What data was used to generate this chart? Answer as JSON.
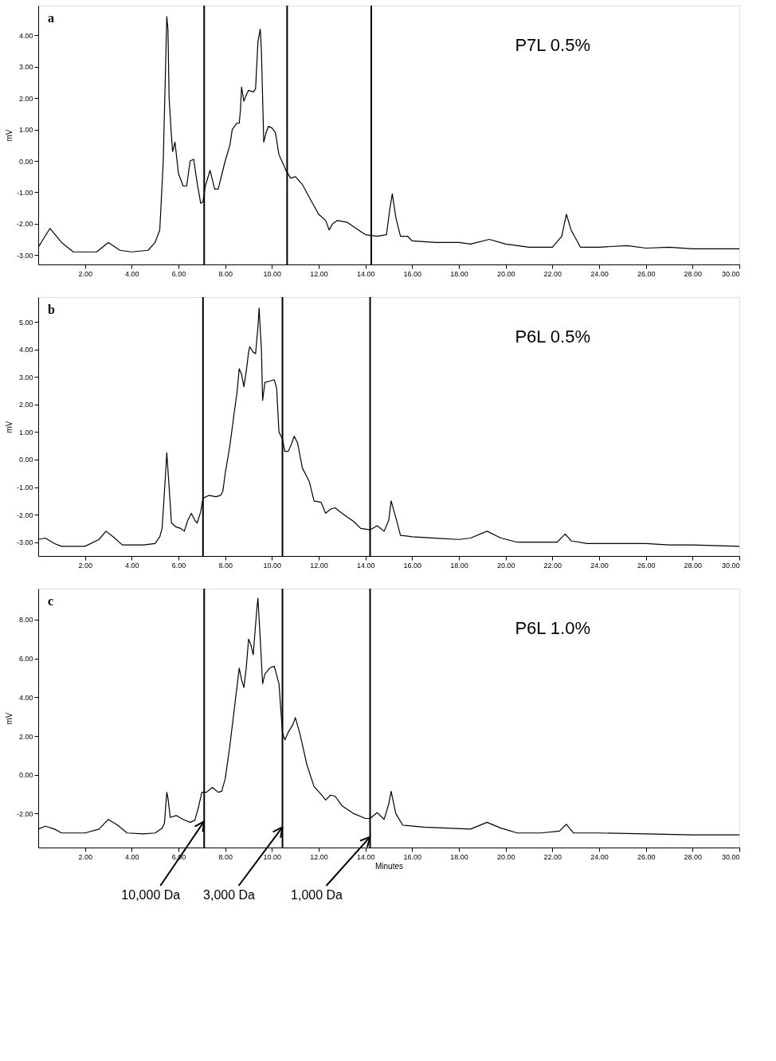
{
  "chart_data": [
    {
      "type": "line",
      "title": "a",
      "ylabel": "mV",
      "annotations": [
        "P7L 0.5%"
      ],
      "grid": false,
      "marker": "none",
      "line_style": "solid",
      "xlim": [
        0,
        30
      ],
      "ylim": [
        -3.3,
        4.95
      ],
      "xticks": [
        {
          "value": 2,
          "label": "2.00"
        },
        {
          "value": 4,
          "label": "4.00"
        },
        {
          "value": 6,
          "label": "6.00"
        },
        {
          "value": 8,
          "label": "8.00"
        },
        {
          "value": 10,
          "label": "10.00"
        },
        {
          "value": 12,
          "label": "12.00"
        },
        {
          "value": 14,
          "label": "14.00"
        },
        {
          "value": 16,
          "label": "16.00"
        },
        {
          "value": 18,
          "label": "18.00"
        },
        {
          "value": 20,
          "label": "20.00"
        },
        {
          "value": 22,
          "label": "22.00"
        },
        {
          "value": 24,
          "label": "24.00"
        },
        {
          "value": 26,
          "label": "26.00"
        },
        {
          "value": 28,
          "label": "28.00"
        },
        {
          "value": 30,
          "label": "30.00"
        }
      ],
      "yticks": [
        {
          "value": -3,
          "label": "-3.00"
        },
        {
          "value": -2,
          "label": "-2.00"
        },
        {
          "value": -1,
          "label": "-1.00"
        },
        {
          "value": 0,
          "label": "0.00"
        },
        {
          "value": 1,
          "label": "1.00"
        },
        {
          "value": 2,
          "label": "2.00"
        },
        {
          "value": 3,
          "label": "3.00"
        },
        {
          "value": 4,
          "label": "4.00"
        }
      ],
      "ref_lines": [
        {
          "axis": "x",
          "value": 7.1,
          "color": "#000000"
        },
        {
          "axis": "x",
          "value": 10.65,
          "color": "#000000"
        },
        {
          "axis": "x",
          "value": 14.25,
          "color": "#000000"
        }
      ],
      "series": [
        {
          "color": "#000000",
          "x": [
            0,
            0.5,
            1.0,
            1.5,
            2.5,
            3.0,
            3.5,
            4.0,
            4.7,
            5.0,
            5.2,
            5.35,
            5.5,
            5.55,
            5.6,
            5.7,
            5.75,
            5.85,
            6.0,
            6.2,
            6.35,
            6.5,
            6.65,
            6.8,
            6.95,
            7.05,
            7.15,
            7.35,
            7.55,
            7.7,
            8.0,
            8.2,
            8.3,
            8.5,
            8.6,
            8.65,
            8.7,
            8.8,
            8.9,
            9.0,
            9.2,
            9.3,
            9.4,
            9.5,
            9.55,
            9.65,
            9.75,
            9.85,
            10.0,
            10.15,
            10.3,
            10.6,
            10.8,
            11.0,
            11.3,
            11.7,
            12.0,
            12.3,
            12.45,
            12.6,
            12.8,
            13.2,
            13.6,
            14.0,
            14.5,
            14.9,
            15.05,
            15.15,
            15.3,
            15.5,
            15.8,
            16.0,
            17.0,
            18.0,
            18.5,
            19.3,
            20.0,
            21.0,
            22.0,
            22.4,
            22.6,
            22.8,
            23.2,
            24.0,
            25.2,
            26.0,
            27.0,
            28.0,
            30.0
          ],
          "values": [
            -2.75,
            -2.15,
            -2.6,
            -2.9,
            -2.9,
            -2.6,
            -2.85,
            -2.9,
            -2.85,
            -2.6,
            -2.2,
            0.0,
            4.6,
            4.2,
            2.0,
            0.8,
            0.3,
            0.6,
            -0.4,
            -0.8,
            -0.8,
            0.0,
            0.05,
            -0.7,
            -1.35,
            -1.3,
            -0.8,
            -0.3,
            -0.9,
            -0.9,
            0.0,
            0.5,
            1.0,
            1.2,
            1.2,
            1.6,
            2.35,
            1.9,
            2.1,
            2.25,
            2.2,
            2.3,
            3.8,
            4.2,
            3.5,
            0.6,
            0.9,
            1.1,
            1.05,
            0.9,
            0.2,
            -0.3,
            -0.55,
            -0.5,
            -0.75,
            -1.3,
            -1.7,
            -1.9,
            -2.2,
            -2.0,
            -1.9,
            -1.95,
            -2.15,
            -2.35,
            -2.4,
            -2.35,
            -1.5,
            -1.05,
            -1.8,
            -2.4,
            -2.4,
            -2.55,
            -2.6,
            -2.6,
            -2.65,
            -2.5,
            -2.65,
            -2.75,
            -2.75,
            -2.4,
            -1.7,
            -2.2,
            -2.75,
            -2.75,
            -2.7,
            -2.78,
            -2.75,
            -2.8,
            -2.8
          ]
        }
      ]
    },
    {
      "type": "line",
      "title": "b",
      "ylabel": "mV",
      "annotations": [
        "P6L 0.5%"
      ],
      "grid": false,
      "marker": "none",
      "line_style": "solid",
      "xlim": [
        0,
        30
      ],
      "ylim": [
        -3.5,
        5.9
      ],
      "xticks": [
        {
          "value": 2,
          "label": "2.00"
        },
        {
          "value": 4,
          "label": "4.00"
        },
        {
          "value": 6,
          "label": "6.00"
        },
        {
          "value": 8,
          "label": "8.00"
        },
        {
          "value": 10,
          "label": "10.00"
        },
        {
          "value": 12,
          "label": "12.00"
        },
        {
          "value": 14,
          "label": "14.00"
        },
        {
          "value": 16,
          "label": "16.00"
        },
        {
          "value": 18,
          "label": "18.00"
        },
        {
          "value": 20,
          "label": "20.00"
        },
        {
          "value": 22,
          "label": "22.00"
        },
        {
          "value": 24,
          "label": "24.00"
        },
        {
          "value": 26,
          "label": "26.00"
        },
        {
          "value": 28,
          "label": "28.00"
        },
        {
          "value": 30,
          "label": "30.00"
        }
      ],
      "yticks": [
        {
          "value": -3,
          "label": "-3.00"
        },
        {
          "value": -2,
          "label": "-2.00"
        },
        {
          "value": -1,
          "label": "-1.00"
        },
        {
          "value": 0,
          "label": "0.00"
        },
        {
          "value": 1,
          "label": "1.00"
        },
        {
          "value": 2,
          "label": "2.00"
        },
        {
          "value": 3,
          "label": "3.00"
        },
        {
          "value": 4,
          "label": "4.00"
        },
        {
          "value": 5,
          "label": "5.00"
        }
      ],
      "ref_lines": [
        {
          "axis": "x",
          "value": 7.05,
          "color": "#000000"
        },
        {
          "axis": "x",
          "value": 10.45,
          "color": "#000000"
        },
        {
          "axis": "x",
          "value": 14.2,
          "color": "#000000"
        }
      ],
      "series": [
        {
          "color": "#000000",
          "x": [
            0,
            0.3,
            0.7,
            1.0,
            2.0,
            2.6,
            2.9,
            3.2,
            3.6,
            4.5,
            5.0,
            5.2,
            5.3,
            5.45,
            5.5,
            5.6,
            5.7,
            5.9,
            6.1,
            6.25,
            6.4,
            6.55,
            6.7,
            6.8,
            6.95,
            7.05,
            7.3,
            7.6,
            7.8,
            7.9,
            8.0,
            8.2,
            8.4,
            8.5,
            8.6,
            8.7,
            8.8,
            8.9,
            9.0,
            9.05,
            9.2,
            9.3,
            9.4,
            9.45,
            9.55,
            9.6,
            9.7,
            9.9,
            10.1,
            10.2,
            10.3,
            10.45,
            10.55,
            10.7,
            10.85,
            10.95,
            11.1,
            11.3,
            11.6,
            11.8,
            12.1,
            12.3,
            12.5,
            12.7,
            13.0,
            13.5,
            13.8,
            14.2,
            14.5,
            14.8,
            15.0,
            15.1,
            15.3,
            15.5,
            16.0,
            17.0,
            18.0,
            18.5,
            19.2,
            19.8,
            20.5,
            21.5,
            22.2,
            22.55,
            22.8,
            23.5,
            25.0,
            26.0,
            27.0,
            28.0,
            30.0
          ],
          "values": [
            -2.9,
            -2.85,
            -3.05,
            -3.15,
            -3.15,
            -2.9,
            -2.6,
            -2.8,
            -3.1,
            -3.1,
            -3.05,
            -2.8,
            -2.5,
            -0.5,
            0.25,
            -1.0,
            -2.3,
            -2.45,
            -2.5,
            -2.6,
            -2.2,
            -1.95,
            -2.2,
            -2.3,
            -1.9,
            -1.4,
            -1.3,
            -1.35,
            -1.3,
            -1.15,
            -0.5,
            0.5,
            1.8,
            2.4,
            3.3,
            3.1,
            2.65,
            3.2,
            3.9,
            4.1,
            3.9,
            3.85,
            4.8,
            5.5,
            4.0,
            2.15,
            2.8,
            2.85,
            2.9,
            2.6,
            1.0,
            0.75,
            0.3,
            0.3,
            0.6,
            0.85,
            0.6,
            -0.3,
            -0.8,
            -1.5,
            -1.55,
            -1.95,
            -1.8,
            -1.75,
            -1.95,
            -2.25,
            -2.5,
            -2.55,
            -2.4,
            -2.6,
            -2.2,
            -1.5,
            -2.1,
            -2.75,
            -2.8,
            -2.85,
            -2.9,
            -2.85,
            -2.6,
            -2.85,
            -3.0,
            -3.0,
            -3.0,
            -2.7,
            -2.95,
            -3.05,
            -3.05,
            -3.05,
            -3.1,
            -3.1,
            -3.15
          ]
        }
      ]
    },
    {
      "type": "line",
      "title": "c",
      "xlabel": "Minutes",
      "ylabel": "mV",
      "grid": false,
      "marker": "none",
      "line_style": "solid",
      "annotations": [
        "P6L 1.0%",
        {
          "text": "10,000 Da",
          "x": 7.1,
          "y": -2.4
        },
        {
          "text": "3,000 Da",
          "x": 10.45,
          "y": -2.7
        },
        {
          "text": "1,000 Da",
          "x": 14.2,
          "y": -3.2
        }
      ],
      "xlim": [
        0,
        30
      ],
      "ylim": [
        -3.75,
        9.6
      ],
      "xticks": [
        {
          "value": 2,
          "label": "2.00"
        },
        {
          "value": 4,
          "label": "4.00"
        },
        {
          "value": 6,
          "label": "6.00"
        },
        {
          "value": 8,
          "label": "8.00"
        },
        {
          "value": 10,
          "label": "10.00"
        },
        {
          "value": 12,
          "label": "12.00"
        },
        {
          "value": 14,
          "label": "14.00"
        },
        {
          "value": 16,
          "label": "16.00"
        },
        {
          "value": 18,
          "label": "18.00"
        },
        {
          "value": 20,
          "label": "20.00"
        },
        {
          "value": 22,
          "label": "22.00"
        },
        {
          "value": 24,
          "label": "24.00"
        },
        {
          "value": 26,
          "label": "26.00"
        },
        {
          "value": 28,
          "label": "28.00"
        },
        {
          "value": 30,
          "label": "30.00"
        }
      ],
      "yticks": [
        {
          "value": -2,
          "label": "-2.00"
        },
        {
          "value": 0,
          "label": "0.00"
        },
        {
          "value": 2,
          "label": "2.00"
        },
        {
          "value": 4,
          "label": "4.00"
        },
        {
          "value": 6,
          "label": "6.00"
        },
        {
          "value": 8,
          "label": "8.00"
        }
      ],
      "ref_lines": [
        {
          "axis": "x",
          "value": 7.1,
          "color": "#000000"
        },
        {
          "axis": "x",
          "value": 10.45,
          "color": "#000000"
        },
        {
          "axis": "x",
          "value": 14.2,
          "color": "#000000"
        }
      ],
      "series": [
        {
          "color": "#000000",
          "x": [
            0,
            0.3,
            0.7,
            1.0,
            2.0,
            2.6,
            3.0,
            3.4,
            3.8,
            4.5,
            5.0,
            5.3,
            5.4,
            5.5,
            5.55,
            5.65,
            5.9,
            6.2,
            6.5,
            6.7,
            6.85,
            7.0,
            7.2,
            7.45,
            7.7,
            7.85,
            8.0,
            8.2,
            8.4,
            8.6,
            8.7,
            8.8,
            8.9,
            9.0,
            9.1,
            9.2,
            9.35,
            9.4,
            9.5,
            9.6,
            9.7,
            9.9,
            10.1,
            10.3,
            10.45,
            10.55,
            10.7,
            10.9,
            11.0,
            11.2,
            11.5,
            11.8,
            12.1,
            12.3,
            12.5,
            12.7,
            13.0,
            13.5,
            14.0,
            14.2,
            14.5,
            14.8,
            15.0,
            15.1,
            15.3,
            15.6,
            16.5,
            17.5,
            18.5,
            19.2,
            19.8,
            20.5,
            21.5,
            22.3,
            22.6,
            22.9,
            24.0,
            26.0,
            28.0,
            30.0
          ],
          "values": [
            -2.8,
            -2.65,
            -2.8,
            -3.0,
            -3.0,
            -2.8,
            -2.3,
            -2.6,
            -3.0,
            -3.05,
            -3.0,
            -2.75,
            -2.5,
            -0.9,
            -1.2,
            -2.2,
            -2.1,
            -2.3,
            -2.45,
            -2.35,
            -1.7,
            -0.9,
            -0.9,
            -0.65,
            -0.9,
            -0.85,
            -0.2,
            1.5,
            3.5,
            5.5,
            4.9,
            4.5,
            5.5,
            7.0,
            6.7,
            6.2,
            8.5,
            9.1,
            7.0,
            4.7,
            5.2,
            5.5,
            5.6,
            4.7,
            2.2,
            1.8,
            2.2,
            2.6,
            2.95,
            2.1,
            0.5,
            -0.6,
            -1.0,
            -1.3,
            -1.05,
            -1.1,
            -1.6,
            -2.0,
            -2.25,
            -2.25,
            -1.95,
            -2.3,
            -1.5,
            -0.85,
            -2.0,
            -2.6,
            -2.7,
            -2.75,
            -2.8,
            -2.45,
            -2.75,
            -3.0,
            -3.0,
            -2.9,
            -2.55,
            -3.0,
            -3.0,
            -3.05,
            -3.1,
            -3.1
          ]
        }
      ]
    }
  ]
}
